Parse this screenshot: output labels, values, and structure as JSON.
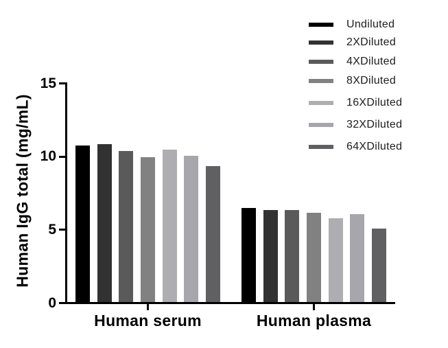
{
  "figure": {
    "background": "#ffffff"
  },
  "chart_data": {
    "type": "bar",
    "title": "",
    "xlabel": "",
    "ylabel": "Human IgG total (mg/mL)",
    "ylim": [
      0,
      15
    ],
    "yticks": [
      0,
      5,
      10,
      15
    ],
    "grid": false,
    "legend_position": "top-right",
    "axis_color": "#000000",
    "text_color": "#000000",
    "legend_text_color": "#1c1c1c",
    "categories": [
      "Human serum",
      "Human plasma"
    ],
    "series": [
      {
        "name": "Undiluted",
        "color": "#000000",
        "values": [
          10.7,
          6.4
        ]
      },
      {
        "name": "2XDiluted",
        "color": "#323232",
        "values": [
          10.8,
          6.3
        ]
      },
      {
        "name": "4XDiluted",
        "color": "#5a5a5a",
        "values": [
          10.3,
          6.3
        ]
      },
      {
        "name": "8XDiluted",
        "color": "#818181",
        "values": [
          9.9,
          6.1
        ]
      },
      {
        "name": "16XDiluted",
        "color": "#aeaeb2",
        "values": [
          10.4,
          5.7
        ]
      },
      {
        "name": "32XDiluted",
        "color": "#a6a6ac",
        "values": [
          10.0,
          6.0
        ]
      },
      {
        "name": "64XDiluted",
        "color": "#606062",
        "values": [
          9.3,
          5.0
        ]
      }
    ]
  }
}
